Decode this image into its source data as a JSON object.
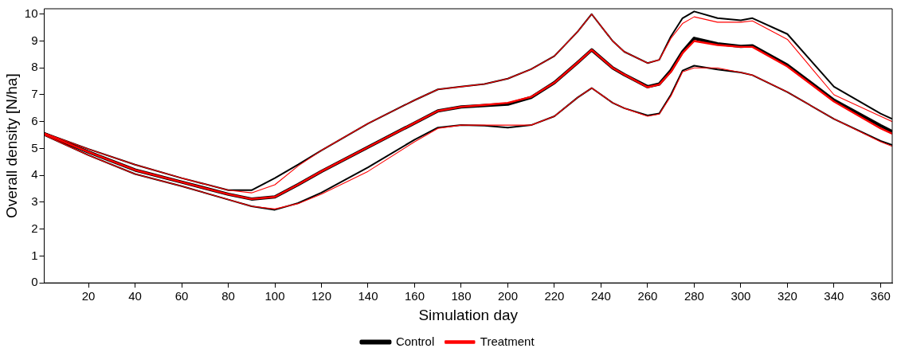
{
  "chart_data": {
    "type": "line",
    "xlabel": "Simulation day",
    "ylabel": "Overall density [N/ha]",
    "x": [
      1,
      20,
      40,
      60,
      80,
      90,
      100,
      110,
      120,
      140,
      160,
      170,
      180,
      190,
      200,
      210,
      220,
      230,
      236,
      245,
      250,
      260,
      265,
      270,
      275,
      280,
      290,
      300,
      305,
      320,
      340,
      360,
      365
    ],
    "series": [
      {
        "name": "Control",
        "color": "#000000",
        "values": [
          5.55,
          4.87,
          4.2,
          3.75,
          3.3,
          3.12,
          3.2,
          3.66,
          4.15,
          5.05,
          5.95,
          6.4,
          6.55,
          6.6,
          6.65,
          6.9,
          7.45,
          8.2,
          8.67,
          8.0,
          7.75,
          7.3,
          7.4,
          7.9,
          8.6,
          9.1,
          8.9,
          8.8,
          8.82,
          8.1,
          6.8,
          5.85,
          5.63
        ]
      },
      {
        "color": "#000000",
        "values": [
          5.58,
          4.98,
          4.4,
          3.9,
          3.45,
          3.45,
          3.9,
          4.4,
          4.93,
          5.93,
          6.8,
          7.2,
          7.3,
          7.4,
          7.6,
          7.95,
          8.44,
          9.35,
          10.0,
          9.0,
          8.6,
          8.18,
          8.3,
          9.17,
          9.85,
          10.1,
          9.85,
          9.77,
          9.85,
          9.26,
          7.3,
          6.3,
          6.1
        ]
      },
      {
        "color": "#000000",
        "values": [
          5.5,
          4.75,
          4.05,
          3.6,
          3.1,
          2.85,
          2.72,
          2.97,
          3.36,
          4.3,
          5.33,
          5.78,
          5.87,
          5.85,
          5.78,
          5.87,
          6.2,
          6.9,
          7.25,
          6.7,
          6.5,
          6.23,
          6.3,
          7.0,
          7.9,
          8.08,
          7.94,
          7.83,
          7.73,
          7.1,
          6.1,
          5.28,
          5.13
        ]
      },
      {
        "name": "Treatment",
        "color": "#ff0000",
        "values": [
          5.55,
          4.87,
          4.2,
          3.75,
          3.3,
          3.12,
          3.2,
          3.66,
          4.15,
          5.05,
          5.95,
          6.4,
          6.55,
          6.62,
          6.7,
          6.92,
          7.45,
          8.2,
          8.67,
          8.0,
          7.75,
          7.28,
          7.38,
          7.85,
          8.55,
          9.0,
          8.85,
          8.78,
          8.78,
          8.05,
          6.75,
          5.75,
          5.55
        ]
      },
      {
        "color": "#ff0000",
        "values": [
          5.58,
          4.98,
          4.4,
          3.9,
          3.45,
          3.35,
          3.65,
          4.35,
          4.93,
          5.93,
          6.8,
          7.2,
          7.3,
          7.4,
          7.6,
          7.95,
          8.44,
          9.35,
          10.0,
          9.0,
          8.6,
          8.18,
          8.3,
          9.1,
          9.65,
          9.9,
          9.7,
          9.7,
          9.75,
          9.06,
          7.0,
          6.2,
          6.0
        ]
      },
      {
        "color": "#ff0000",
        "values": [
          5.5,
          4.75,
          4.05,
          3.6,
          3.1,
          2.85,
          2.75,
          2.95,
          3.3,
          4.15,
          5.25,
          5.75,
          5.87,
          5.87,
          5.87,
          5.87,
          6.2,
          6.9,
          7.25,
          6.7,
          6.5,
          6.2,
          6.28,
          6.95,
          7.85,
          8.0,
          8.0,
          7.83,
          7.73,
          7.1,
          6.1,
          5.25,
          5.08
        ]
      }
    ],
    "xlim": [
      1,
      365
    ],
    "xticks": [
      20,
      40,
      60,
      80,
      100,
      120,
      140,
      160,
      180,
      200,
      220,
      240,
      260,
      280,
      300,
      320,
      340,
      360
    ],
    "ylim": [
      0,
      10.2
    ],
    "yticks": [
      0,
      1,
      2,
      3,
      4,
      5,
      6,
      7,
      8,
      9,
      10
    ],
    "grid": false,
    "legend": "bottom",
    "line_style": "solid",
    "marker": "none"
  }
}
